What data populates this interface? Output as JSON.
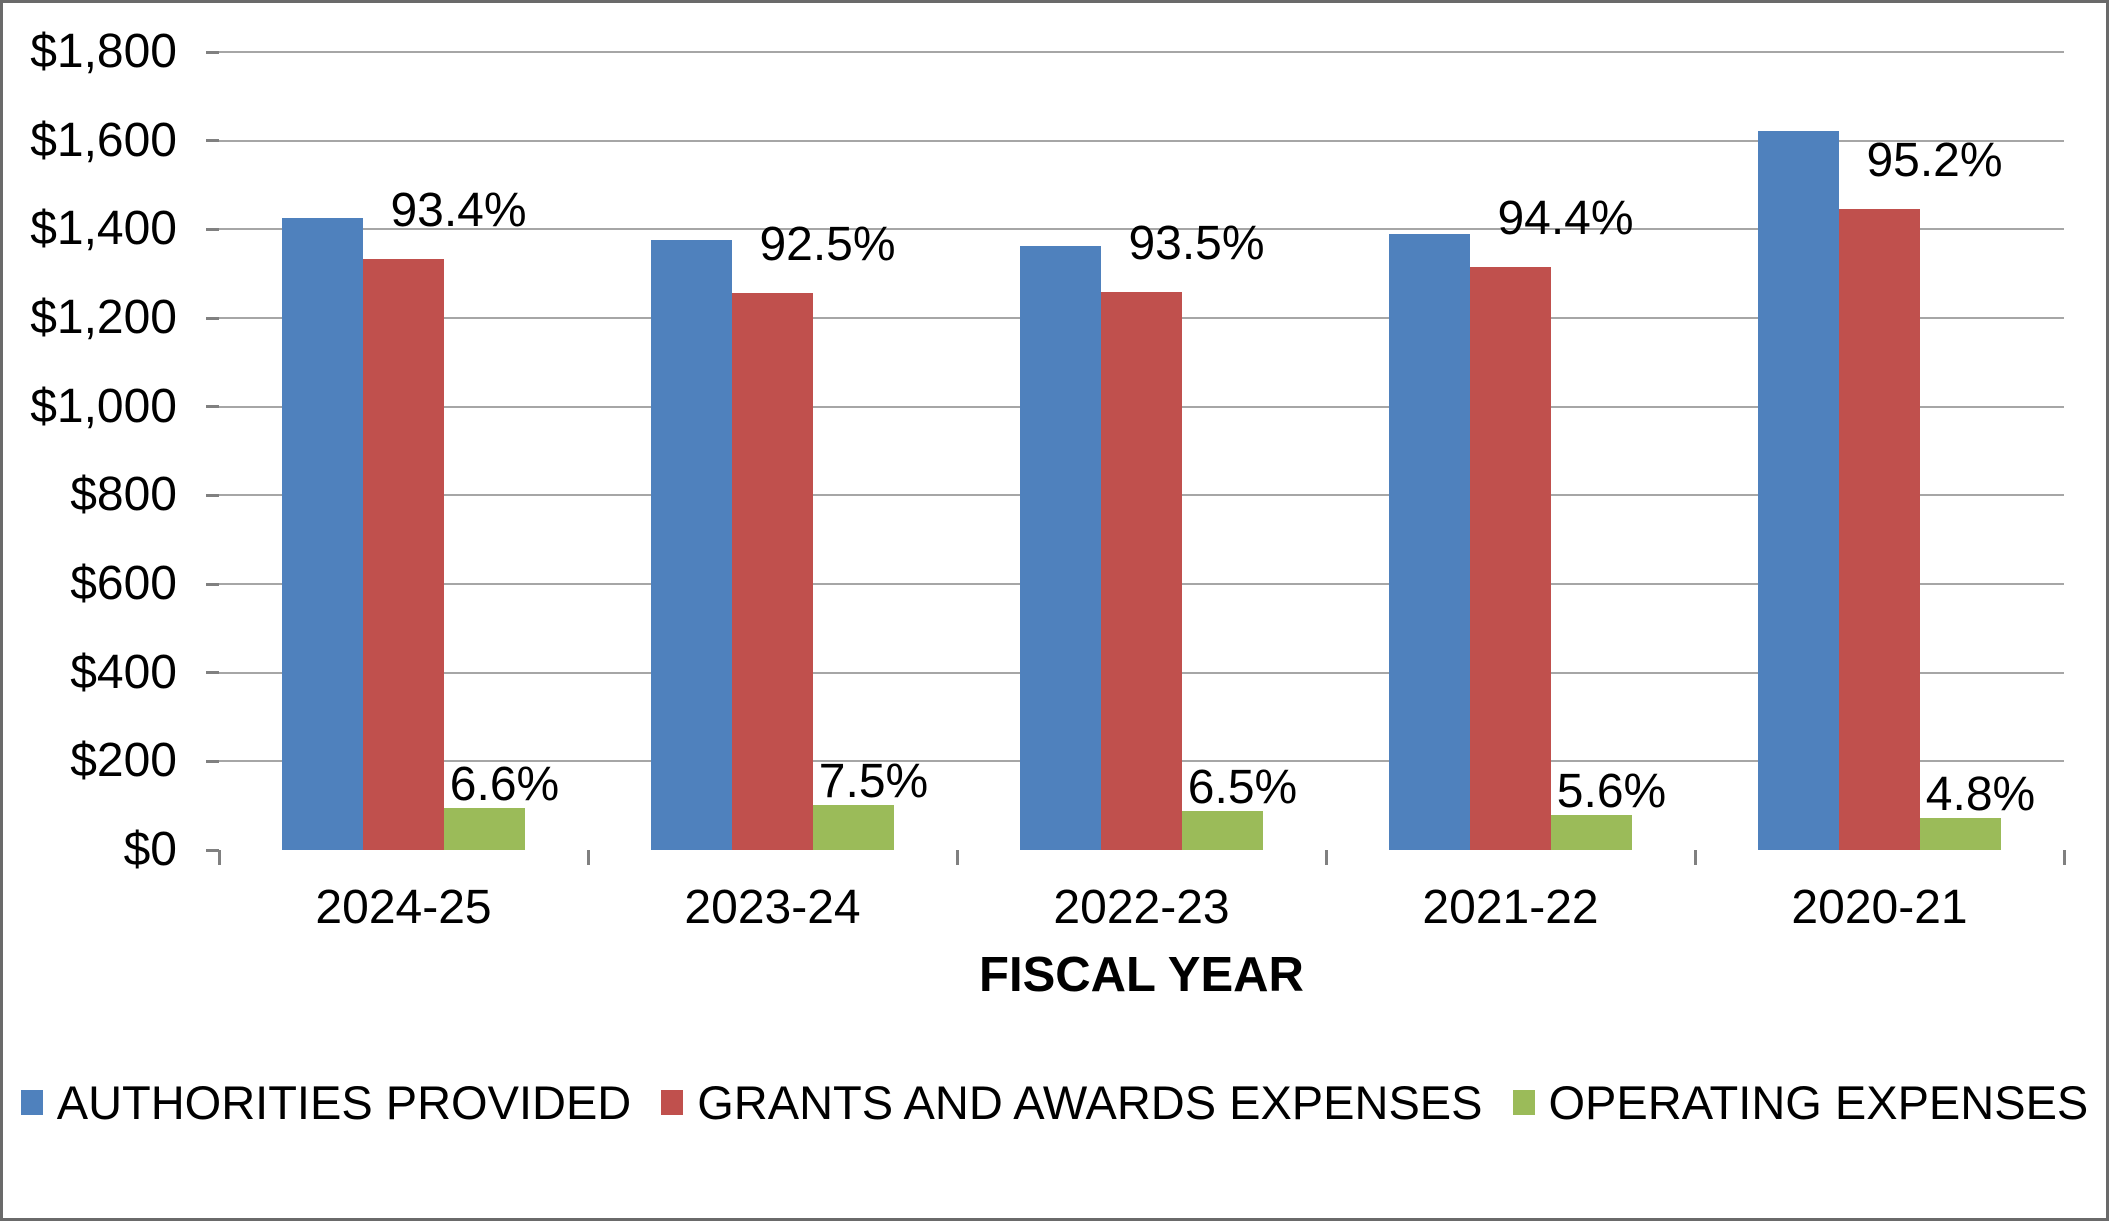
{
  "chart_data": {
    "type": "bar",
    "title": "",
    "categories": [
      "2024-25",
      "2023-24",
      "2022-23",
      "2021-22",
      "2020-21"
    ],
    "series": [
      {
        "name": "AUTHORITIES PROVIDED",
        "color": "#4F81BD",
        "values": [
          1425,
          1375,
          1362,
          1390,
          1622
        ],
        "data_labels": [
          "",
          "",
          "",
          "",
          ""
        ]
      },
      {
        "name": "GRANTS AND AWARDS EXPENSES",
        "color": "#C0504D",
        "values": [
          1332,
          1256,
          1258,
          1316,
          1445
        ],
        "data_labels": [
          "93.4%",
          "92.5%",
          "93.5%",
          "94.4%",
          "95.2%"
        ]
      },
      {
        "name": "OPERATING EXPENSES",
        "color": "#9BBB59",
        "values": [
          94,
          102,
          87,
          78,
          73
        ],
        "data_labels": [
          "6.6%",
          "7.5%",
          "6.5%",
          "5.6%",
          "4.8%"
        ]
      }
    ],
    "xlabel": "FISCAL YEAR",
    "ylabel": "",
    "ylim": [
      0,
      1800
    ],
    "ytick_step": 200,
    "ytick_labels": [
      "$0",
      "$200",
      "$400",
      "$600",
      "$800",
      "$1,000",
      "$1,200",
      "$1,400",
      "$1,600",
      "$1,800"
    ],
    "grid": true,
    "legend_position": "bottom"
  },
  "style_colors": {
    "gridline": "#A6A6A6",
    "axis": "#808080",
    "frame_border": "#6A6A6A",
    "background": "#FFFFFF",
    "text": "#000000"
  }
}
